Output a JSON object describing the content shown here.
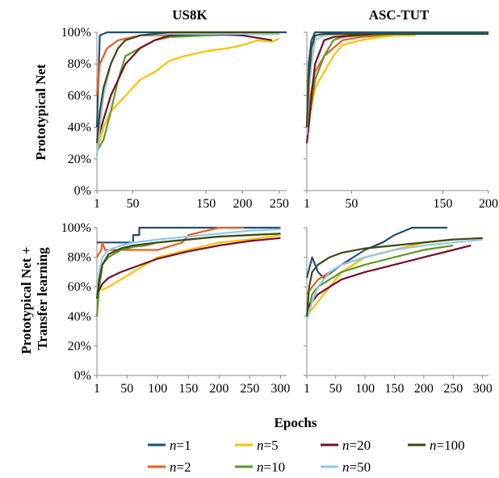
{
  "figure": {
    "columns": [
      "US8K",
      "ASC-TUT"
    ],
    "rows": [
      [
        "Prototypical Net"
      ],
      [
        "Prototypical Net +",
        "Transfer learning"
      ]
    ],
    "xlabel": "Epochs"
  },
  "legend": [
    {
      "var": "n",
      "eq": "=1",
      "color": "#1f4e79"
    },
    {
      "var": "n",
      "eq": "=5",
      "color": "#ffc000"
    },
    {
      "var": "n",
      "eq": "=20",
      "color": "#7b0c28"
    },
    {
      "var": "n",
      "eq": "=100",
      "color": "#3d4a0f"
    },
    {
      "var": "n",
      "eq": "=2",
      "color": "#f25c19"
    },
    {
      "var": "n",
      "eq": "=10",
      "color": "#5b9a23"
    },
    {
      "var": "n",
      "eq": "=50",
      "color": "#8fc7f0"
    }
  ],
  "chart_data": [
    {
      "type": "line",
      "row": "Prototypical Net",
      "column": "US8K",
      "xlim": [
        1,
        260
      ],
      "ylim": [
        0,
        100
      ],
      "x_ticks": [
        "1",
        "50",
        "150",
        "200",
        "250"
      ],
      "x_tick_values": [
        1,
        50,
        150,
        200,
        250
      ],
      "y_ticks": [
        "0%",
        "20%",
        "40%",
        "60%",
        "80%",
        "100%"
      ],
      "grid": false,
      "series": [
        {
          "name": "n=1",
          "color": "#1f4e79",
          "x": [
            1,
            5,
            15,
            30,
            260
          ],
          "y": [
            40,
            98,
            100,
            100,
            100
          ]
        },
        {
          "name": "n=2",
          "color": "#f25c19",
          "x": [
            1,
            5,
            15,
            30,
            60,
            100,
            150,
            200,
            250
          ],
          "y": [
            60,
            80,
            90,
            95,
            98,
            98,
            99,
            99,
            99
          ]
        },
        {
          "name": "n=5",
          "color": "#ffc000",
          "x": [
            1,
            10,
            20,
            40,
            60,
            80,
            100,
            120,
            150,
            180,
            200,
            220,
            240,
            250
          ],
          "y": [
            25,
            40,
            50,
            60,
            70,
            75,
            82,
            85,
            88,
            90,
            92,
            95,
            94,
            96
          ]
        },
        {
          "name": "n=10",
          "color": "#5b9a23",
          "x": [
            1,
            10,
            20,
            30,
            40,
            60,
            80,
            100,
            150,
            200,
            250
          ],
          "y": [
            25,
            32,
            50,
            70,
            85,
            90,
            95,
            97,
            98,
            99,
            99
          ]
        },
        {
          "name": "n=20",
          "color": "#7b0c28",
          "x": [
            1,
            10,
            20,
            30,
            40,
            60,
            80,
            100,
            150,
            200,
            240
          ],
          "y": [
            30,
            45,
            60,
            70,
            80,
            90,
            95,
            98,
            99,
            98,
            95
          ]
        },
        {
          "name": "n=50",
          "color": "#8fc7f0",
          "x": [
            1,
            5,
            10,
            20,
            30,
            40,
            60,
            100,
            150,
            250
          ],
          "y": [
            22,
            40,
            60,
            80,
            90,
            95,
            98,
            99,
            99,
            99
          ]
        },
        {
          "name": "n=100",
          "color": "#3d4a0f",
          "x": [
            1,
            5,
            10,
            20,
            30,
            40,
            60,
            100,
            150,
            250
          ],
          "y": [
            30,
            50,
            65,
            80,
            90,
            95,
            98,
            100,
            100,
            100
          ]
        }
      ]
    },
    {
      "type": "line",
      "row": "Prototypical Net",
      "column": "ASC-TUT",
      "xlim": [
        1,
        200
      ],
      "ylim": [
        0,
        100
      ],
      "x_ticks": [
        "1",
        "50",
        "150",
        "200"
      ],
      "x_tick_values": [
        1,
        50,
        150,
        200
      ],
      "y_ticks": [
        "0%",
        "20%",
        "40%",
        "60%",
        "80%",
        "100%"
      ],
      "grid": false,
      "series": [
        {
          "name": "n=1",
          "color": "#1f4e79",
          "x": [
            1,
            3,
            6,
            10,
            40,
            200
          ],
          "y": [
            40,
            80,
            95,
            100,
            100,
            100
          ]
        },
        {
          "name": "n=2",
          "color": "#f25c19",
          "x": [
            1,
            5,
            10,
            20,
            30,
            40,
            60,
            80,
            100
          ],
          "y": [
            35,
            60,
            75,
            85,
            90,
            95,
            97,
            98,
            98
          ]
        },
        {
          "name": "n=5",
          "color": "#ffc000",
          "x": [
            1,
            5,
            10,
            20,
            30,
            40,
            60,
            80,
            100,
            120
          ],
          "y": [
            30,
            50,
            65,
            75,
            85,
            92,
            95,
            97,
            98,
            98
          ]
        },
        {
          "name": "n=10",
          "color": "#5b9a23",
          "x": [
            1,
            5,
            10,
            20,
            30,
            40,
            60,
            100,
            150,
            200
          ],
          "y": [
            35,
            50,
            70,
            85,
            95,
            97,
            98,
            99,
            99,
            99
          ]
        },
        {
          "name": "n=20",
          "color": "#7b0c28",
          "x": [
            1,
            3,
            6,
            10,
            20,
            30,
            50,
            80
          ],
          "y": [
            30,
            40,
            60,
            80,
            95,
            97,
            98,
            99
          ]
        },
        {
          "name": "n=50",
          "color": "#8fc7f0",
          "x": [
            1,
            3,
            6,
            10,
            20,
            40,
            80,
            150,
            200
          ],
          "y": [
            35,
            60,
            80,
            95,
            98,
            99,
            99,
            99,
            99
          ]
        },
        {
          "name": "n=100",
          "color": "#3d4a0f",
          "x": [
            1,
            3,
            6,
            10,
            20,
            40,
            80,
            200
          ],
          "y": [
            40,
            70,
            90,
            98,
            99,
            99,
            99,
            99
          ]
        }
      ]
    },
    {
      "type": "line",
      "row": "Prototypical Net + Transfer learning",
      "column": "US8K",
      "xlim": [
        1,
        310
      ],
      "ylim": [
        0,
        100
      ],
      "x_ticks": [
        "1",
        "50",
        "100",
        "150",
        "200",
        "250",
        "300"
      ],
      "x_tick_values": [
        1,
        50,
        100,
        150,
        200,
        250,
        300
      ],
      "y_ticks": [
        "0%",
        "20%",
        "40%",
        "60%",
        "80%",
        "100%"
      ],
      "grid": false,
      "series": [
        {
          "name": "n=1",
          "color": "#1f4e79",
          "x": [
            1,
            60,
            60,
            70,
            70,
            300
          ],
          "y": [
            90,
            90,
            95,
            95,
            100,
            100
          ]
        },
        {
          "name": "n=2",
          "color": "#f25c19",
          "x": [
            1,
            8,
            10,
            14,
            20,
            60,
            100,
            140,
            150,
            200,
            240
          ],
          "y": [
            80,
            85,
            90,
            85,
            85,
            85,
            85,
            90,
            95,
            100,
            100
          ]
        },
        {
          "name": "n=5",
          "color": "#ffc000",
          "x": [
            1,
            10,
            20,
            40,
            60,
            80,
            100,
            150,
            200,
            250,
            300
          ],
          "y": [
            60,
            58,
            60,
            65,
            70,
            75,
            80,
            85,
            90,
            92,
            95
          ]
        },
        {
          "name": "n=10",
          "color": "#5b9a23",
          "x": [
            1,
            5,
            10,
            20,
            40,
            60,
            80,
            100,
            150,
            200,
            250,
            300
          ],
          "y": [
            40,
            60,
            75,
            80,
            85,
            87,
            88,
            90,
            92,
            94,
            95,
            96
          ]
        },
        {
          "name": "n=20",
          "color": "#7b0c28",
          "x": [
            1,
            10,
            20,
            40,
            60,
            80,
            100,
            150,
            200,
            250,
            300
          ],
          "y": [
            55,
            62,
            66,
            70,
            73,
            76,
            79,
            84,
            88,
            91,
            93
          ]
        },
        {
          "name": "n=50",
          "color": "#8fc7f0",
          "x": [
            1,
            5,
            10,
            20,
            40,
            60,
            80,
            100,
            150,
            200,
            250,
            300
          ],
          "y": [
            55,
            70,
            80,
            85,
            88,
            90,
            91,
            92,
            94,
            96,
            98,
            99
          ]
        },
        {
          "name": "n=100",
          "color": "#3d4a0f",
          "x": [
            1,
            5,
            10,
            20,
            40,
            60,
            80,
            100,
            150,
            200,
            250,
            300
          ],
          "y": [
            52,
            65,
            75,
            82,
            86,
            88,
            89,
            90,
            92,
            94,
            95,
            96
          ]
        }
      ]
    },
    {
      "type": "line",
      "row": "Prototypical Net + Transfer learning",
      "column": "ASC-TUT",
      "xlim": [
        1,
        310
      ],
      "ylim": [
        0,
        100
      ],
      "x_ticks": [
        "1",
        "50",
        "100",
        "150",
        "200",
        "250",
        "300"
      ],
      "x_tick_values": [
        1,
        50,
        100,
        150,
        200,
        250,
        300
      ],
      "y_ticks": [
        "0%",
        "20%",
        "40%",
        "60%",
        "80%",
        "100%"
      ],
      "grid": false,
      "series": [
        {
          "name": "n=1",
          "color": "#1f4e79",
          "x": [
            1,
            10,
            20,
            30,
            60,
            100,
            130,
            150,
            180,
            240
          ],
          "y": [
            66,
            80,
            70,
            66,
            75,
            85,
            90,
            95,
            100,
            100
          ]
        },
        {
          "name": "n=2",
          "color": "#f25c19",
          "x": [
            1,
            10,
            20,
            40,
            60,
            100,
            150,
            200,
            250
          ],
          "y": [
            55,
            60,
            65,
            70,
            75,
            80,
            85,
            90,
            92
          ]
        },
        {
          "name": "n=5",
          "color": "#ffc000",
          "x": [
            1,
            10,
            20,
            40,
            60,
            100,
            150,
            200,
            250
          ],
          "y": [
            40,
            45,
            50,
            60,
            70,
            80,
            85,
            90,
            92
          ]
        },
        {
          "name": "n=10",
          "color": "#5b9a23",
          "x": [
            1,
            10,
            20,
            40,
            60,
            100,
            150,
            200,
            250
          ],
          "y": [
            40,
            55,
            60,
            65,
            70,
            75,
            80,
            85,
            88
          ]
        },
        {
          "name": "n=20",
          "color": "#7b0c28",
          "x": [
            1,
            10,
            20,
            40,
            60,
            100,
            150,
            200,
            250,
            280
          ],
          "y": [
            45,
            50,
            55,
            60,
            65,
            70,
            75,
            80,
            85,
            88
          ]
        },
        {
          "name": "n=50",
          "color": "#8fc7f0",
          "x": [
            1,
            10,
            20,
            40,
            60,
            100,
            150,
            200,
            250,
            300
          ],
          "y": [
            38,
            50,
            60,
            70,
            75,
            80,
            85,
            88,
            90,
            92
          ]
        },
        {
          "name": "n=100",
          "color": "#3d4a0f",
          "x": [
            1,
            5,
            10,
            20,
            40,
            60,
            100,
            150,
            200,
            250,
            300
          ],
          "y": [
            40,
            60,
            70,
            75,
            80,
            83,
            86,
            88,
            90,
            92,
            93
          ]
        }
      ]
    }
  ]
}
